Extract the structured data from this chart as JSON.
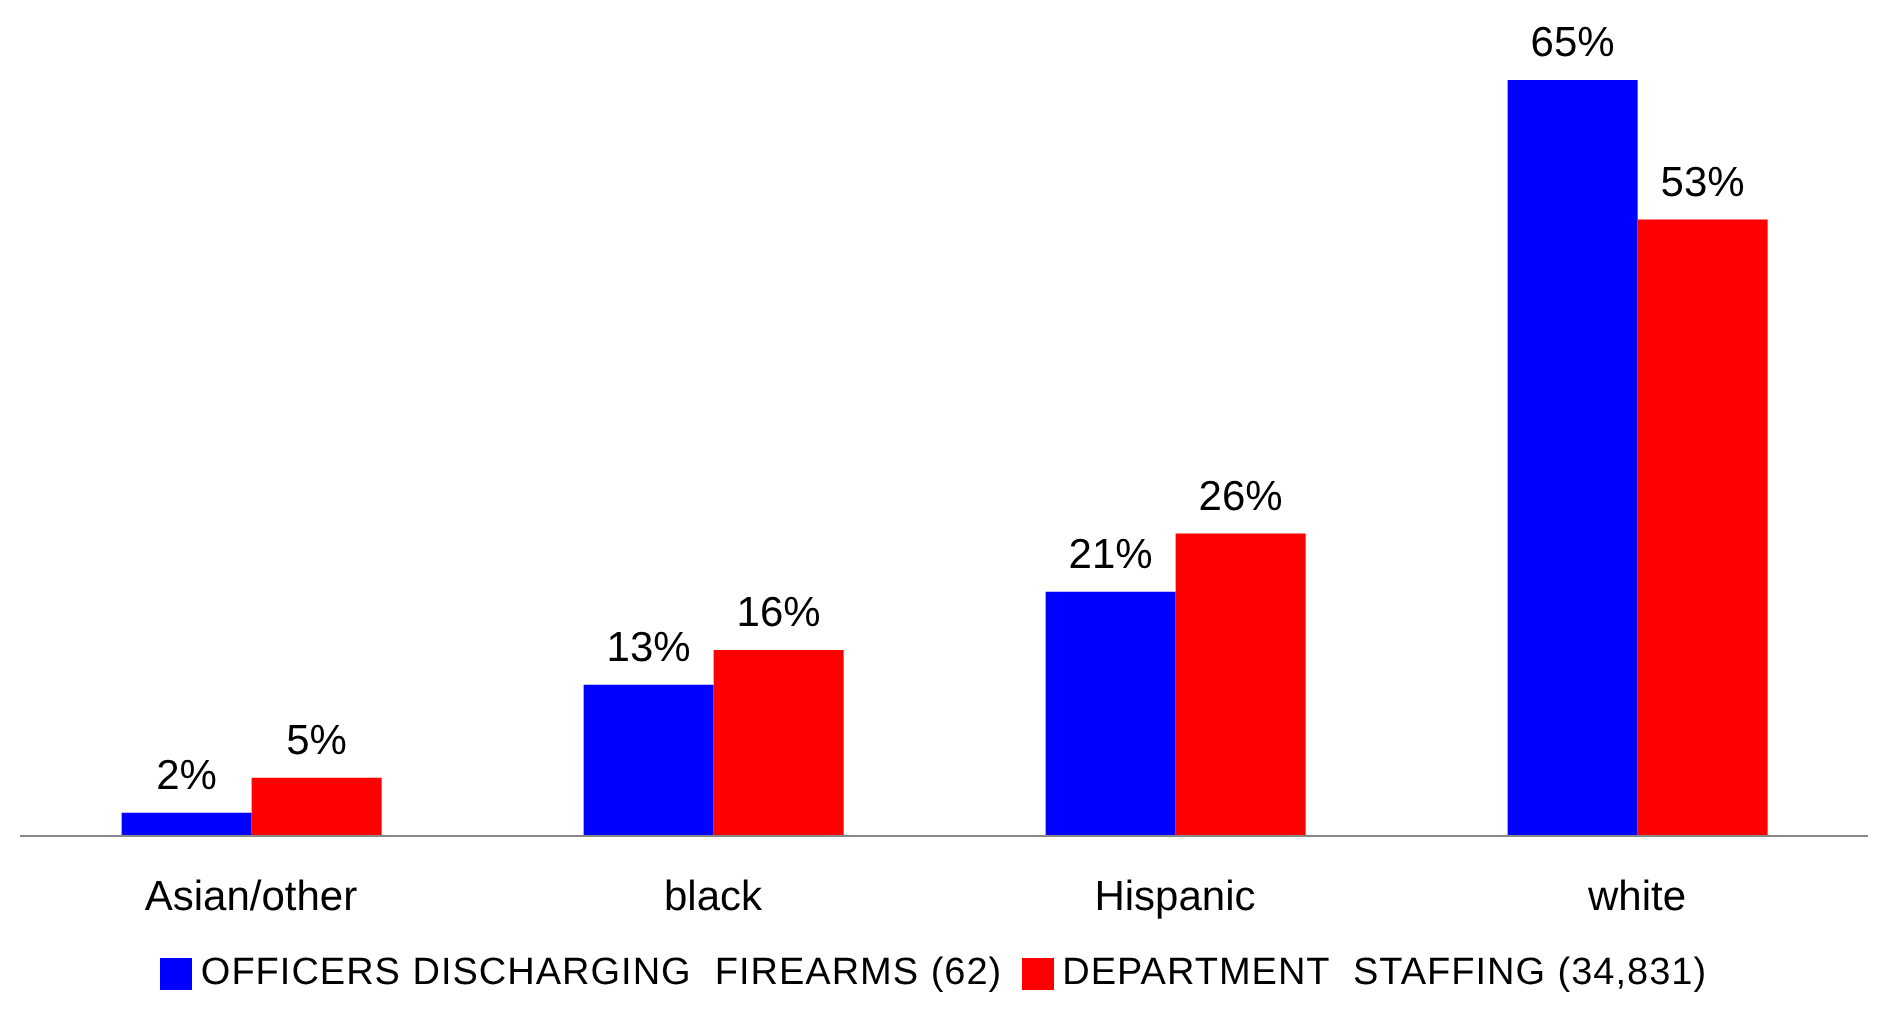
{
  "chart_data": {
    "type": "bar",
    "categories": [
      "Asian/other",
      "black",
      "Hispanic",
      "white"
    ],
    "series": [
      {
        "name": "OFFICERS DISCHARGING  FIREARMS (62)",
        "color": "#0000ff",
        "values": [
          2,
          13,
          21,
          65
        ],
        "value_labels": [
          "2%",
          "13%",
          "21%",
          "65%"
        ]
      },
      {
        "name": "DEPARTMENT  STAFFING (34,831)",
        "color": "#ff0000",
        "values": [
          5,
          16,
          26,
          53
        ],
        "value_labels": [
          "5%",
          "16%",
          "26%",
          "53%"
        ]
      }
    ],
    "legend": "bottom",
    "grid": false
  }
}
